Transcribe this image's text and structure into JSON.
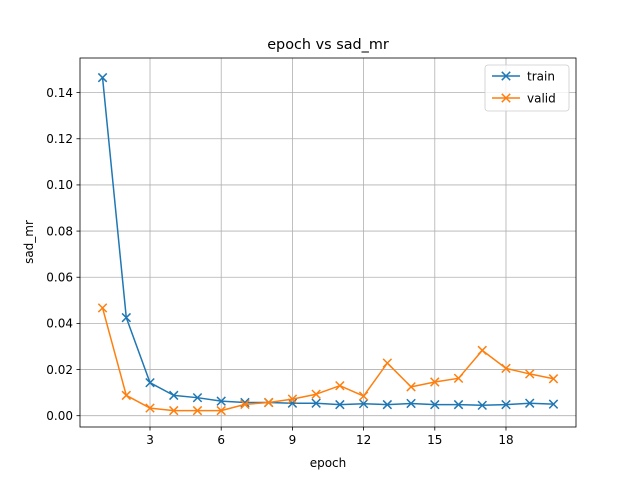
{
  "chart_data": {
    "type": "line",
    "title": "epoch vs sad_mr",
    "xlabel": "epoch",
    "ylabel": "sad_mr",
    "x": [
      1,
      2,
      3,
      4,
      5,
      6,
      7,
      8,
      9,
      10,
      11,
      12,
      13,
      14,
      15,
      16,
      17,
      18,
      19,
      20
    ],
    "xlim": [
      0.05,
      20.95
    ],
    "ylim": [
      -0.0049,
      0.155
    ],
    "xticks": [
      3,
      6,
      9,
      12,
      15,
      18
    ],
    "yticks": [
      0.0,
      0.02,
      0.04,
      0.06,
      0.08,
      0.1,
      0.12,
      0.14
    ],
    "ytick_labels": [
      "0.00",
      "0.02",
      "0.04",
      "0.06",
      "0.08",
      "0.10",
      "0.12",
      "0.14"
    ],
    "grid": true,
    "legend_position": "top-right",
    "series": [
      {
        "name": "train",
        "color": "#1f77b4",
        "marker": "x",
        "values": [
          0.1465,
          0.0425,
          0.0143,
          0.0088,
          0.0078,
          0.0063,
          0.0057,
          0.0057,
          0.0054,
          0.0054,
          0.0048,
          0.0052,
          0.0048,
          0.0053,
          0.0048,
          0.0048,
          0.0045,
          0.0048,
          0.0054,
          0.005
        ]
      },
      {
        "name": "valid",
        "color": "#ff7f0e",
        "marker": "x",
        "values": [
          0.0467,
          0.0088,
          0.0033,
          0.0022,
          0.0022,
          0.0022,
          0.0049,
          0.0057,
          0.0072,
          0.0093,
          0.013,
          0.0085,
          0.0228,
          0.0125,
          0.0146,
          0.0162,
          0.0283,
          0.0205,
          0.0181,
          0.016
        ]
      }
    ]
  }
}
